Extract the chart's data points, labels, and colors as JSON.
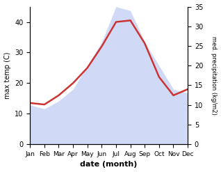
{
  "months": [
    "Jan",
    "Feb",
    "Mar",
    "Apr",
    "May",
    "Jun",
    "Jul",
    "Aug",
    "Sep",
    "Oct",
    "Nov",
    "Dec"
  ],
  "temp_line": [
    13.5,
    13,
    16,
    20,
    25,
    32,
    40,
    40.5,
    33,
    22,
    16,
    18
  ],
  "precip": [
    10,
    9,
    11,
    14,
    20,
    26,
    35,
    34,
    26,
    20,
    14,
    13
  ],
  "temp_ylim": [
    0,
    45
  ],
  "precip_ylim": [
    0,
    35
  ],
  "temp_yticks": [
    0,
    10,
    20,
    30,
    40
  ],
  "precip_yticks": [
    0,
    5,
    10,
    15,
    20,
    25,
    30,
    35
  ],
  "fill_color": "#c8d4f5",
  "fill_alpha": 0.85,
  "line_color": "#cc3333",
  "line_width": 1.8,
  "xlabel": "date (month)",
  "ylabel_left": "max temp (C)",
  "ylabel_right": "med. precipitation (kg/m2)",
  "background_color": "#ffffff"
}
